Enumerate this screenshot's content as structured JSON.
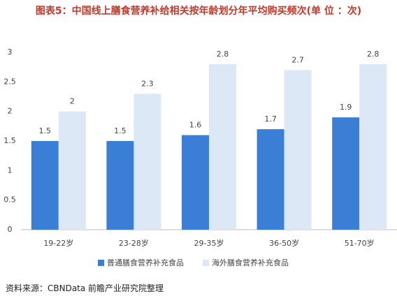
{
  "chart_data": {
    "type": "bar",
    "title": "图表5：中国线上膳食营养补给相关按年龄划分年平均购买频次(单 位 ：次)",
    "categories": [
      "19-22岁",
      "23-28岁",
      "29-35岁",
      "36-50岁",
      "51-70岁"
    ],
    "series": [
      {
        "name": "普通膳食营养补充食品",
        "color": "#3a7fd5",
        "values": [
          1.5,
          1.5,
          1.6,
          1.7,
          1.9
        ]
      },
      {
        "name": "海外膳食营养补充食品",
        "color": "#dce8f5",
        "values": [
          2,
          2.3,
          2.8,
          2.7,
          2.8
        ]
      }
    ],
    "ylim": [
      0,
      3
    ],
    "yticks": [
      0,
      0.5,
      1,
      1.5,
      2,
      2.5,
      3
    ],
    "grid": false,
    "legend": "bottom",
    "source": "资料来源：CBNData 前瞻产业研究院整理"
  }
}
